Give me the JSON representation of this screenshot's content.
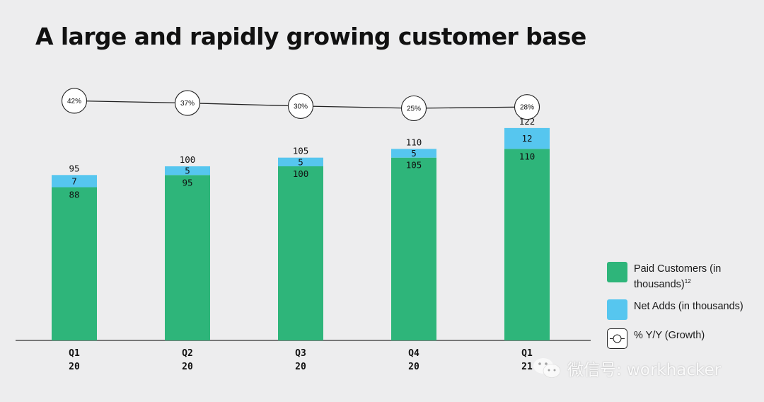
{
  "title": "A large and rapidly growing customer base",
  "colors": {
    "paid": "#2eb57a",
    "net_adds": "#56c6ef",
    "line": "#222222",
    "marker_fill": "#ffffff"
  },
  "chart_data": {
    "type": "bar",
    "stacked": true,
    "categories": [
      [
        "Q1",
        "20"
      ],
      [
        "Q2",
        "20"
      ],
      [
        "Q3",
        "20"
      ],
      [
        "Q4",
        "20"
      ],
      [
        "Q1",
        "21"
      ]
    ],
    "series": [
      {
        "name": "Paid Customers (in thousands)",
        "values": [
          88,
          95,
          100,
          105,
          110
        ]
      },
      {
        "name": "Net Adds (in thousands)",
        "values": [
          7,
          5,
          5,
          5,
          12
        ]
      }
    ],
    "totals": [
      95,
      100,
      105,
      110,
      122
    ],
    "growth_line": {
      "name": "% Y/Y (Growth)",
      "labels": [
        "42%",
        "37%",
        "30%",
        "25%",
        "28%"
      ],
      "values": [
        42,
        37,
        30,
        25,
        28
      ]
    },
    "ylim": [
      0,
      130
    ]
  },
  "legend": {
    "paid_label": "Paid Customers (in thousands)",
    "paid_superscript": "12",
    "net_adds_label": "Net Adds (in thousands)",
    "growth_label": "% Y/Y (Growth)"
  },
  "watermark": {
    "text": "微信号: workhacker",
    "icon": "wechat-icon"
  }
}
